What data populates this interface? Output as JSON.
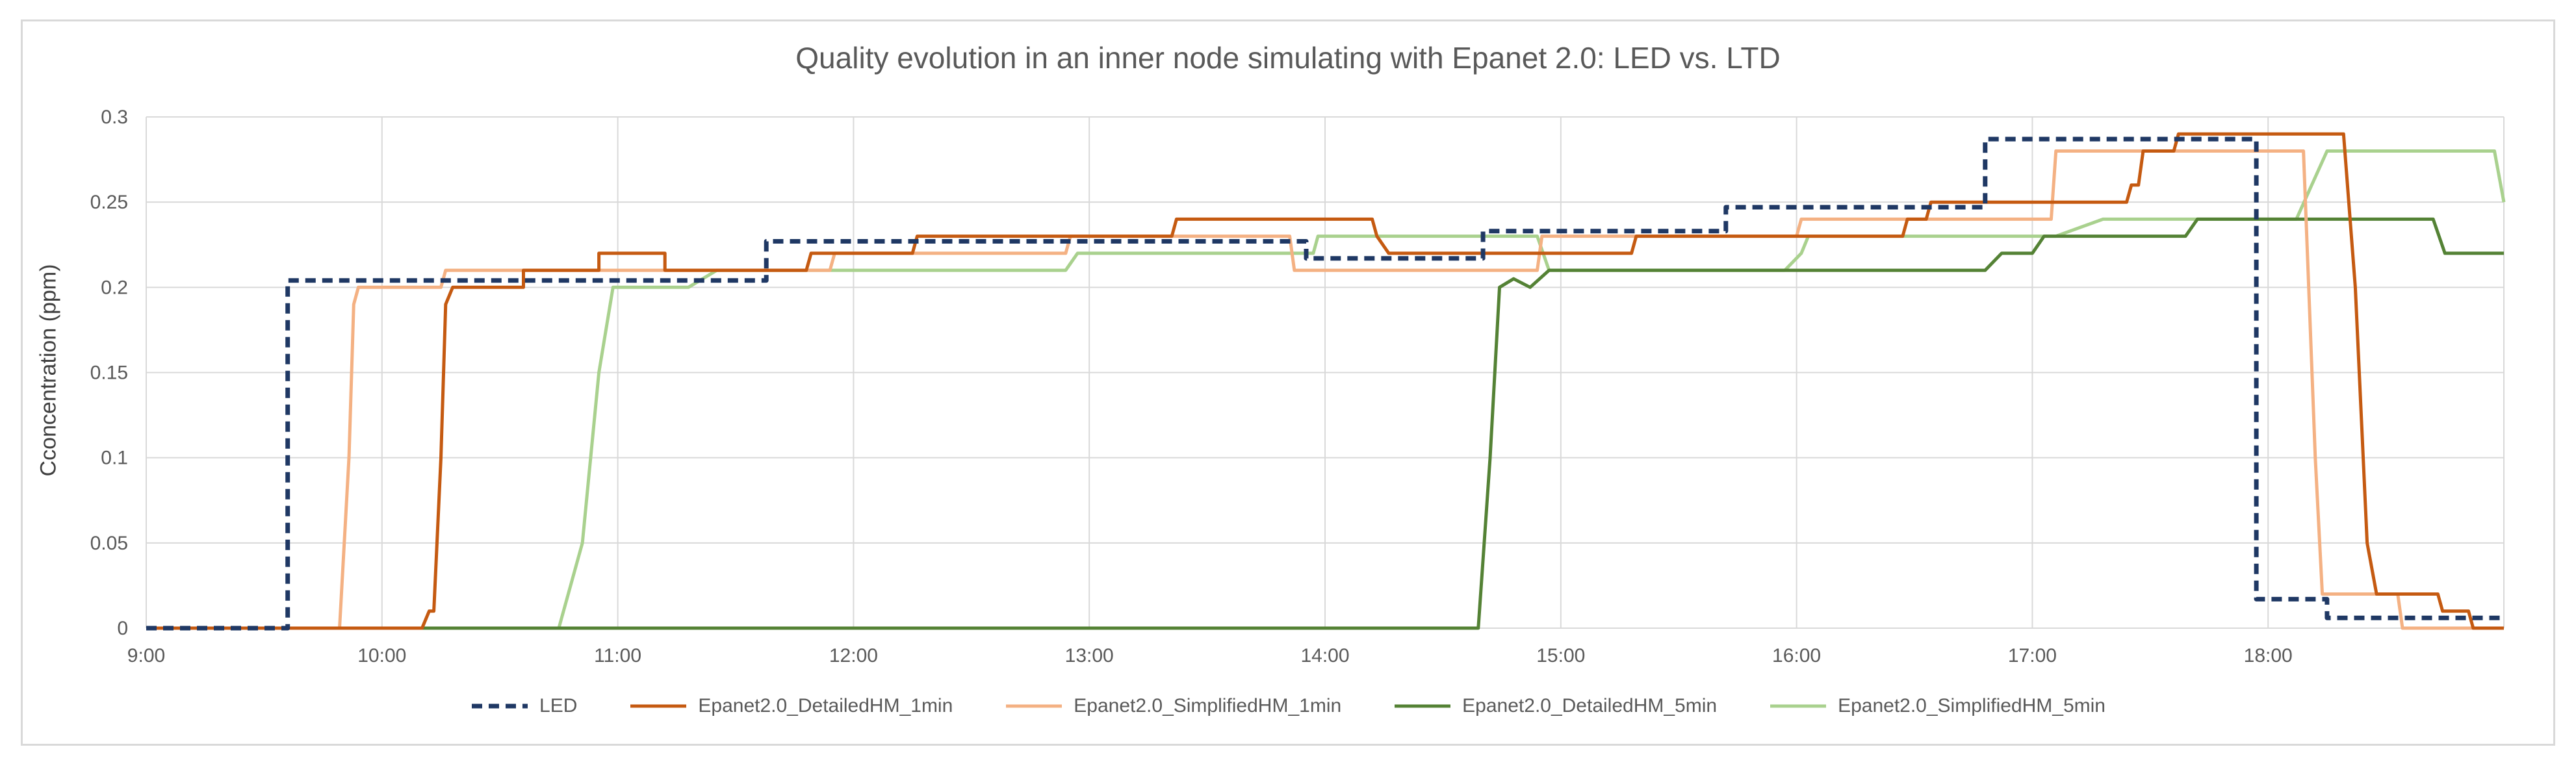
{
  "chart_data": {
    "type": "line",
    "title": "Quality evolution in an inner node simulating with Epanet 2.0: LED vs. LTD",
    "xlabel": "",
    "ylabel": "Cconcentration (ppm)",
    "x_unit": "time of day (hours)",
    "xlim": [
      9.0,
      19.0
    ],
    "ylim": [
      0,
      0.3
    ],
    "yticks": [
      "0",
      "0.05",
      "0.1",
      "0.15",
      "0.2",
      "0.25",
      "0.3"
    ],
    "xticks": [
      "9:00",
      "10:00",
      "11:00",
      "12:00",
      "13:00",
      "14:00",
      "15:00",
      "16:00",
      "17:00",
      "18:00"
    ],
    "grid": true,
    "legend_position": "bottom",
    "series": [
      {
        "name": "LED",
        "color": "#1f3864",
        "style": "dashed",
        "points": [
          [
            9.0,
            0
          ],
          [
            9.6,
            0
          ],
          [
            9.6,
            0.204
          ],
          [
            11.63,
            0.204
          ],
          [
            11.63,
            0.227
          ],
          [
            13.92,
            0.227
          ],
          [
            13.92,
            0.217
          ],
          [
            14.67,
            0.217
          ],
          [
            14.67,
            0.233
          ],
          [
            15.7,
            0.233
          ],
          [
            15.7,
            0.247
          ],
          [
            16.8,
            0.247
          ],
          [
            16.8,
            0.287
          ],
          [
            17.95,
            0.287
          ],
          [
            17.95,
            0.017
          ],
          [
            18.25,
            0.017
          ],
          [
            18.25,
            0.006
          ],
          [
            19.0,
            0.006
          ]
        ]
      },
      {
        "name": "Epanet2.0_DetailedHM_1min",
        "color": "#c55a11",
        "style": "solid",
        "points": [
          [
            9.0,
            0
          ],
          [
            10.17,
            0
          ],
          [
            10.2,
            0.01
          ],
          [
            10.22,
            0.01
          ],
          [
            10.25,
            0.1
          ],
          [
            10.27,
            0.19
          ],
          [
            10.3,
            0.2
          ],
          [
            10.6,
            0.2
          ],
          [
            10.6,
            0.21
          ],
          [
            10.92,
            0.21
          ],
          [
            10.92,
            0.22
          ],
          [
            11.2,
            0.22
          ],
          [
            11.2,
            0.21
          ],
          [
            11.8,
            0.21
          ],
          [
            11.82,
            0.22
          ],
          [
            12.25,
            0.22
          ],
          [
            12.27,
            0.23
          ],
          [
            13.35,
            0.23
          ],
          [
            13.37,
            0.24
          ],
          [
            14.2,
            0.24
          ],
          [
            14.22,
            0.23
          ],
          [
            14.27,
            0.22
          ],
          [
            15.3,
            0.22
          ],
          [
            15.32,
            0.23
          ],
          [
            16.45,
            0.23
          ],
          [
            16.47,
            0.24
          ],
          [
            16.55,
            0.24
          ],
          [
            16.57,
            0.25
          ],
          [
            17.4,
            0.25
          ],
          [
            17.42,
            0.26
          ],
          [
            17.45,
            0.26
          ],
          [
            17.47,
            0.28
          ],
          [
            17.6,
            0.28
          ],
          [
            17.62,
            0.29
          ],
          [
            18.32,
            0.29
          ],
          [
            18.37,
            0.2
          ],
          [
            18.42,
            0.05
          ],
          [
            18.46,
            0.02
          ],
          [
            18.72,
            0.02
          ],
          [
            18.74,
            0.01
          ],
          [
            18.85,
            0.01
          ],
          [
            18.87,
            0
          ],
          [
            19.0,
            0
          ]
        ]
      },
      {
        "name": "Epanet2.0_SimplifiedHM_1min",
        "color": "#f4b183",
        "style": "solid",
        "points": [
          [
            9.0,
            0
          ],
          [
            9.82,
            0
          ],
          [
            9.86,
            0.1
          ],
          [
            9.88,
            0.19
          ],
          [
            9.9,
            0.2
          ],
          [
            10.25,
            0.2
          ],
          [
            10.27,
            0.21
          ],
          [
            11.9,
            0.21
          ],
          [
            11.92,
            0.22
          ],
          [
            12.9,
            0.22
          ],
          [
            12.92,
            0.23
          ],
          [
            13.85,
            0.23
          ],
          [
            13.87,
            0.21
          ],
          [
            14.9,
            0.21
          ],
          [
            14.92,
            0.23
          ],
          [
            16.0,
            0.23
          ],
          [
            16.02,
            0.24
          ],
          [
            17.08,
            0.24
          ],
          [
            17.1,
            0.28
          ],
          [
            18.15,
            0.28
          ],
          [
            18.2,
            0.1
          ],
          [
            18.23,
            0.02
          ],
          [
            18.55,
            0.02
          ],
          [
            18.57,
            0
          ],
          [
            19.0,
            0
          ]
        ]
      },
      {
        "name": "Epanet2.0_DetailedHM_5min",
        "color": "#548235",
        "style": "solid",
        "points": [
          [
            9.0,
            0
          ],
          [
            14.65,
            0
          ],
          [
            14.7,
            0.1
          ],
          [
            14.74,
            0.2
          ],
          [
            14.8,
            0.205
          ],
          [
            14.87,
            0.2
          ],
          [
            14.95,
            0.21
          ],
          [
            15.6,
            0.21
          ],
          [
            16.8,
            0.21
          ],
          [
            16.87,
            0.22
          ],
          [
            17.0,
            0.22
          ],
          [
            17.05,
            0.23
          ],
          [
            17.65,
            0.23
          ],
          [
            17.7,
            0.24
          ],
          [
            18.65,
            0.24
          ],
          [
            18.7,
            0.24
          ],
          [
            18.75,
            0.22
          ],
          [
            19.0,
            0.22
          ]
        ]
      },
      {
        "name": "Epanet2.0_SimplifiedHM_5min",
        "color": "#a9d18e",
        "style": "solid",
        "points": [
          [
            9.0,
            0
          ],
          [
            10.75,
            0
          ],
          [
            10.85,
            0.05
          ],
          [
            10.92,
            0.15
          ],
          [
            10.98,
            0.2
          ],
          [
            11.3,
            0.2
          ],
          [
            11.42,
            0.21
          ],
          [
            12.9,
            0.21
          ],
          [
            12.95,
            0.22
          ],
          [
            13.95,
            0.22
          ],
          [
            13.97,
            0.23
          ],
          [
            14.9,
            0.23
          ],
          [
            14.95,
            0.21
          ],
          [
            15.95,
            0.21
          ],
          [
            16.02,
            0.22
          ],
          [
            16.05,
            0.23
          ],
          [
            17.05,
            0.23
          ],
          [
            17.1,
            0.23
          ],
          [
            17.3,
            0.24
          ],
          [
            18.0,
            0.24
          ],
          [
            18.12,
            0.24
          ],
          [
            18.25,
            0.28
          ],
          [
            18.9,
            0.28
          ],
          [
            18.96,
            0.28
          ],
          [
            19.0,
            0.25
          ]
        ]
      }
    ]
  }
}
